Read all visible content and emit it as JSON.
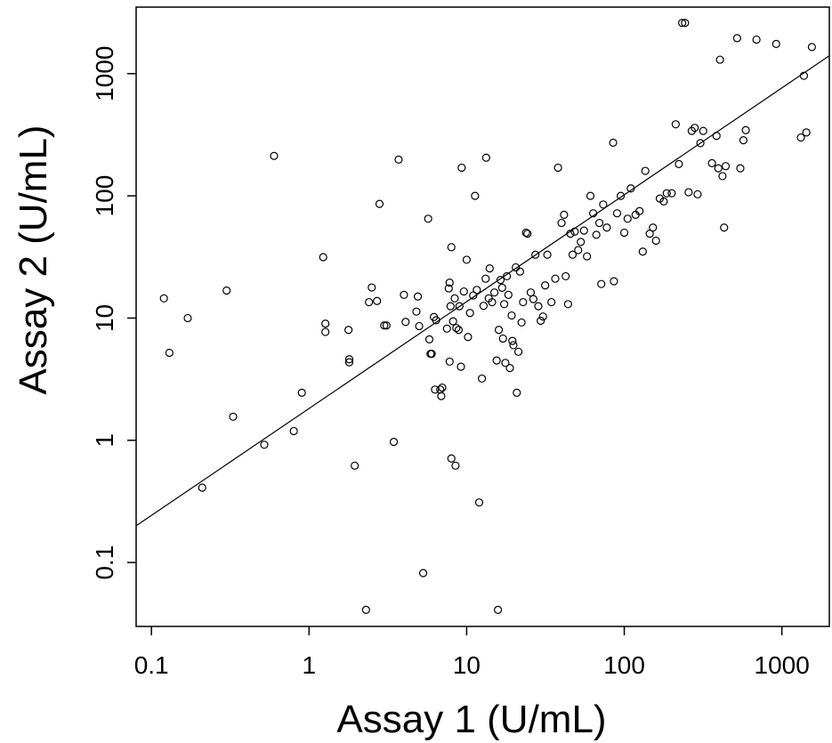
{
  "chart_data": {
    "type": "scatter",
    "xlabel": "Assay 1 (U/mL)",
    "ylabel": "Assay 2 (U/mL)",
    "x_scale": "log",
    "y_scale": "log",
    "x_ticks": [
      0.1,
      1,
      10,
      100,
      1000
    ],
    "x_tick_labels": [
      "0.1",
      "1",
      "10",
      "100",
      "1000"
    ],
    "y_ticks": [
      0.1,
      1,
      10,
      100,
      1000
    ],
    "y_tick_labels": [
      "0.1",
      "1",
      "10",
      "100",
      "1000"
    ],
    "xlim": [
      0.08,
      2000
    ],
    "ylim": [
      0.03,
      3500
    ],
    "grid": false,
    "fit_line": {
      "x": [
        0.08,
        2000
      ],
      "y": [
        0.2,
        1400
      ]
    },
    "points": [
      [
        0.12,
        14.5
      ],
      [
        0.13,
        5.2
      ],
      [
        0.17,
        10
      ],
      [
        0.21,
        0.41
      ],
      [
        0.3,
        16.8
      ],
      [
        0.33,
        1.56
      ],
      [
        0.52,
        0.92
      ],
      [
        0.6,
        212
      ],
      [
        0.8,
        1.19
      ],
      [
        0.9,
        2.45
      ],
      [
        1.23,
        31.5
      ],
      [
        1.27,
        9.0
      ],
      [
        1.27,
        7.7
      ],
      [
        1.78,
        8.0
      ],
      [
        1.8,
        4.6
      ],
      [
        1.8,
        4.35
      ],
      [
        1.95,
        0.62
      ],
      [
        2.3,
        0.041
      ],
      [
        2.4,
        13.5
      ],
      [
        2.5,
        17.8
      ],
      [
        2.7,
        13.8
      ],
      [
        2.8,
        86
      ],
      [
        3.0,
        8.7
      ],
      [
        3.1,
        8.7
      ],
      [
        3.45,
        0.97
      ],
      [
        3.7,
        198
      ],
      [
        4.0,
        15.5
      ],
      [
        4.1,
        9.3
      ],
      [
        4.8,
        11.3
      ],
      [
        4.9,
        15.0
      ],
      [
        5.0,
        8.6
      ],
      [
        5.3,
        0.082
      ],
      [
        5.7,
        65
      ],
      [
        5.8,
        6.7
      ],
      [
        5.9,
        5.1
      ],
      [
        6.0,
        5.1
      ],
      [
        6.2,
        10.2
      ],
      [
        6.4,
        9.6
      ],
      [
        6.3,
        2.6
      ],
      [
        6.8,
        2.6
      ],
      [
        6.9,
        2.3
      ],
      [
        7.0,
        2.7
      ],
      [
        7.5,
        8.2
      ],
      [
        7.7,
        17.5
      ],
      [
        7.8,
        19.5
      ],
      [
        7.9,
        12.5
      ],
      [
        7.8,
        4.4
      ],
      [
        8.0,
        38
      ],
      [
        8.0,
        0.71
      ],
      [
        8.5,
        0.62
      ],
      [
        8.2,
        9.4
      ],
      [
        8.4,
        14.5
      ],
      [
        8.6,
        8.3
      ],
      [
        8.9,
        8.0
      ],
      [
        9.2,
        4.0
      ],
      [
        9.3,
        170
      ],
      [
        9.6,
        16.5
      ],
      [
        9.0,
        12.5
      ],
      [
        10.0,
        30
      ],
      [
        10.2,
        7.0
      ],
      [
        10.5,
        11
      ],
      [
        11.0,
        15.3
      ],
      [
        11.3,
        100
      ],
      [
        11.6,
        17
      ],
      [
        12.0,
        0.31
      ],
      [
        12.5,
        3.2
      ],
      [
        12.8,
        12.6
      ],
      [
        13.2,
        21
      ],
      [
        13.3,
        205
      ],
      [
        13.8,
        14.5
      ],
      [
        14.0,
        25.5
      ],
      [
        14.5,
        13.5
      ],
      [
        15.0,
        16.2
      ],
      [
        15.5,
        4.5
      ],
      [
        15.8,
        0.041
      ],
      [
        16.0,
        8.0
      ],
      [
        16.4,
        20.5
      ],
      [
        16.8,
        17.7
      ],
      [
        17.0,
        6.8
      ],
      [
        17.3,
        13.0
      ],
      [
        17.6,
        4.3
      ],
      [
        18.0,
        22
      ],
      [
        18.4,
        15.5
      ],
      [
        18.8,
        3.9
      ],
      [
        19.3,
        10.5
      ],
      [
        19.5,
        6.5
      ],
      [
        19.8,
        6.0
      ],
      [
        20.5,
        26
      ],
      [
        20.8,
        2.45
      ],
      [
        21.3,
        5.3
      ],
      [
        21.8,
        24
      ],
      [
        22.3,
        9.2
      ],
      [
        22.8,
        13.5
      ],
      [
        23.8,
        50
      ],
      [
        24.3,
        49
      ],
      [
        25.5,
        16.2
      ],
      [
        26.5,
        14.3
      ],
      [
        27.3,
        33
      ],
      [
        28.5,
        12.5
      ],
      [
        29.5,
        9.5
      ],
      [
        30.5,
        10.3
      ],
      [
        31.5,
        18.5
      ],
      [
        32.5,
        33
      ],
      [
        34.5,
        13.5
      ],
      [
        36.5,
        21
      ],
      [
        38.0,
        170
      ],
      [
        40.0,
        60
      ],
      [
        41.5,
        70
      ],
      [
        42.5,
        22
      ],
      [
        44.0,
        13
      ],
      [
        45.5,
        49
      ],
      [
        47.0,
        33
      ],
      [
        48.5,
        51
      ],
      [
        51.0,
        36
      ],
      [
        53.0,
        42
      ],
      [
        55.5,
        52
      ],
      [
        58.0,
        32
      ],
      [
        61.0,
        100
      ],
      [
        63.5,
        72
      ],
      [
        66.5,
        48
      ],
      [
        69.5,
        60
      ],
      [
        71.5,
        19
      ],
      [
        73.5,
        85
      ],
      [
        77.5,
        55
      ],
      [
        85.0,
        272
      ],
      [
        86.0,
        20
      ],
      [
        90.0,
        72
      ],
      [
        95.0,
        100
      ],
      [
        100,
        50
      ],
      [
        105,
        65
      ],
      [
        110,
        115
      ],
      [
        118,
        70
      ],
      [
        125,
        75
      ],
      [
        131,
        35
      ],
      [
        136,
        160
      ],
      [
        145,
        49
      ],
      [
        152,
        55
      ],
      [
        159,
        43
      ],
      [
        168,
        95
      ],
      [
        178,
        90
      ],
      [
        186,
        105
      ],
      [
        200,
        105
      ],
      [
        212,
        385
      ],
      [
        222,
        182
      ],
      [
        233,
        2600
      ],
      [
        243,
        2600
      ],
      [
        256,
        107
      ],
      [
        268,
        340
      ],
      [
        280,
        360
      ],
      [
        292,
        103
      ],
      [
        304,
        270
      ],
      [
        317,
        340
      ],
      [
        360,
        185
      ],
      [
        385,
        310
      ],
      [
        395,
        168
      ],
      [
        405,
        1300
      ],
      [
        420,
        145
      ],
      [
        430,
        55
      ],
      [
        440,
        175
      ],
      [
        520,
        1950
      ],
      [
        545,
        168
      ],
      [
        570,
        285
      ],
      [
        590,
        345
      ],
      [
        690,
        1900
      ],
      [
        920,
        1750
      ],
      [
        1320,
        300
      ],
      [
        1380,
        960
      ],
      [
        1430,
        330
      ],
      [
        1550,
        1650
      ]
    ]
  }
}
